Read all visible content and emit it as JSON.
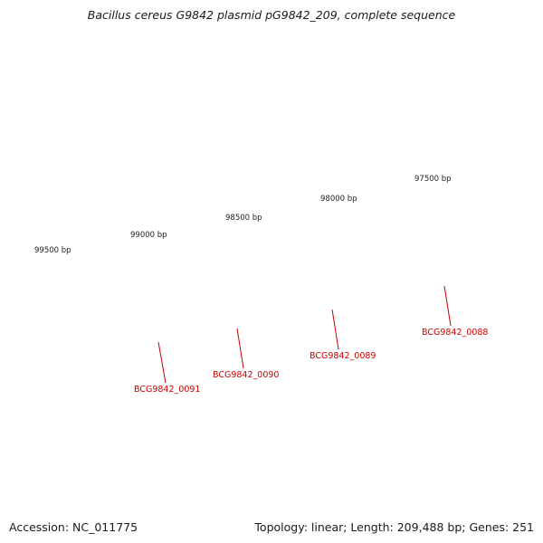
{
  "header": {
    "title": "Bacillus cereus G9842 plasmid pG9842_209, complete sequence"
  },
  "footer": {
    "accession": "Accession: NC_011775",
    "summary": "Topology: linear; Length: 209,488 bp; Genes: 251"
  },
  "ruler": {
    "labels": [
      {
        "text": "99500 bp"
      },
      {
        "text": "99000 bp"
      },
      {
        "text": "98500 bp"
      },
      {
        "text": "98000 bp"
      },
      {
        "text": "97500 bp"
      }
    ]
  },
  "genes": [
    {
      "locus": "BCG9842_0091"
    },
    {
      "locus": "BCG9842_0090"
    },
    {
      "locus": "BCG9842_0089"
    },
    {
      "locus": "BCG9842_0088"
    }
  ],
  "colors": {
    "backbone": "#7f7f7f",
    "cds": "#ff0000",
    "cds_shade": "#ff7070",
    "gene_other": "#ff3399",
    "gene_other_edge": "#aa0055",
    "rna": "#00e5ff",
    "misc": "#b8a878",
    "tick": "#1a7a1a",
    "leader": "#cc0000",
    "label": "#cc0000"
  }
}
